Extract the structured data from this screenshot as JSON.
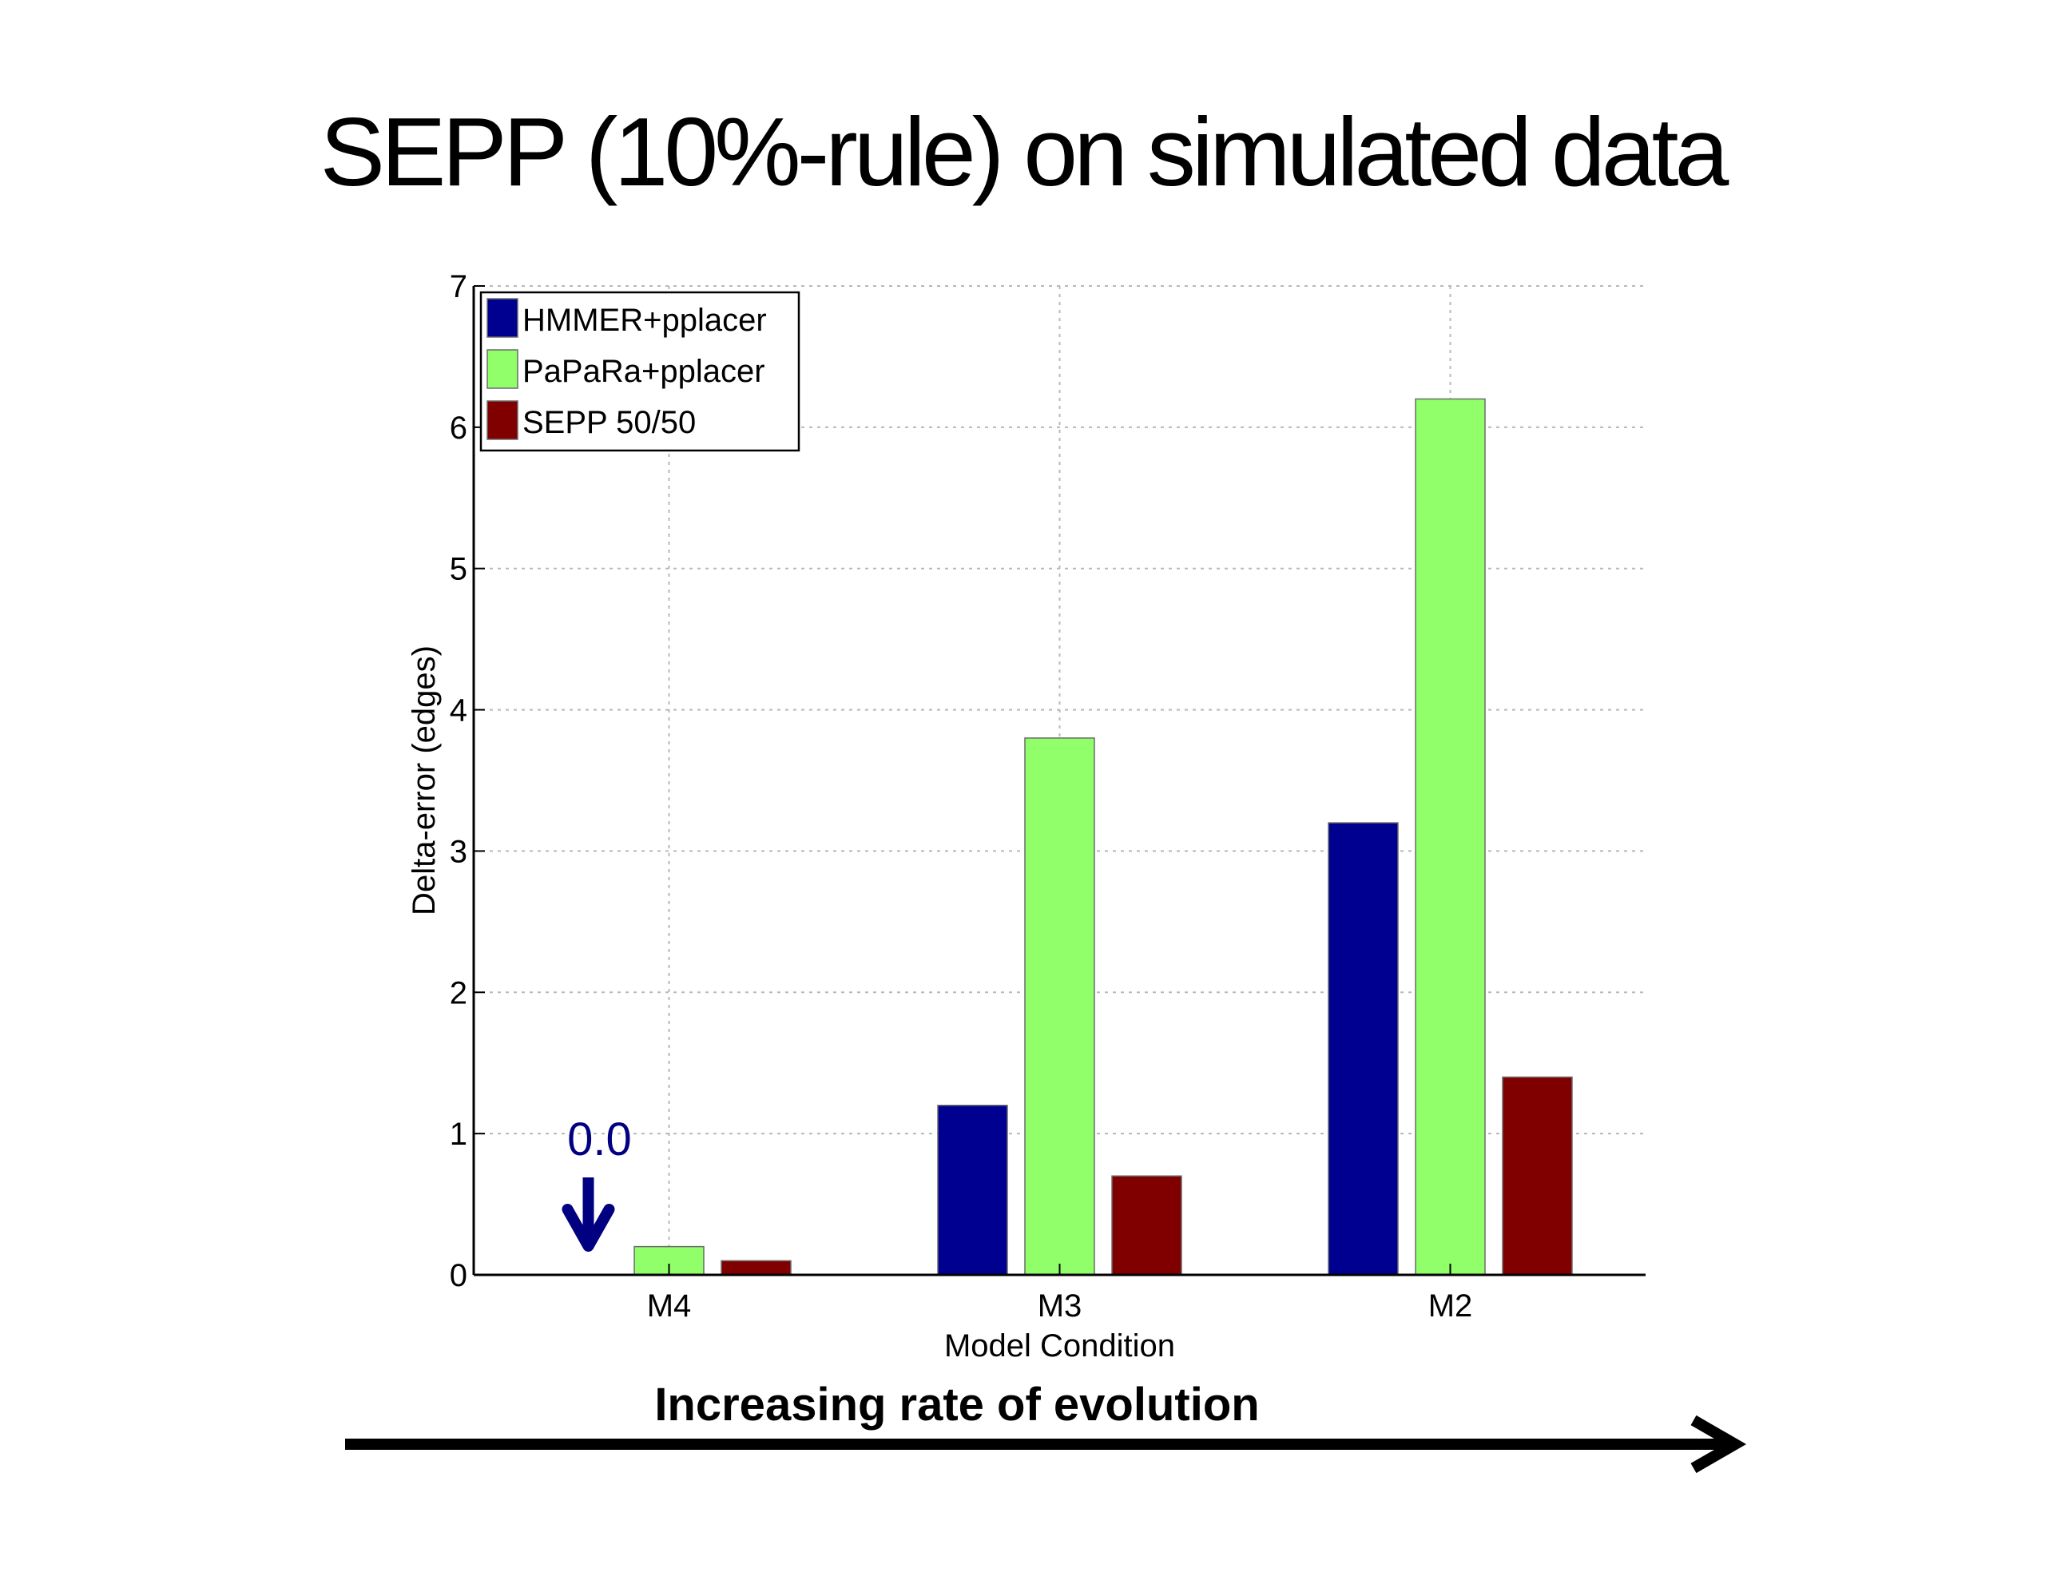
{
  "slide": {
    "title": "SEPP (10%-rule) on simulated data",
    "caption": "Increasing rate of evolution"
  },
  "chart_data": {
    "type": "bar",
    "title": "",
    "xlabel": "Model Condition",
    "ylabel": "Delta-error (edges)",
    "categories": [
      "M4",
      "M3",
      "M2"
    ],
    "series": [
      {
        "name": "HMMER+pplacer",
        "color": "#000090",
        "values": [
          0.0,
          1.2,
          3.2
        ]
      },
      {
        "name": "PaPaRa+pplacer",
        "color": "#90ff6a",
        "values": [
          0.2,
          3.8,
          6.2
        ]
      },
      {
        "name": "SEPP 50/50",
        "color": "#800000",
        "values": [
          0.1,
          0.7,
          1.4
        ]
      }
    ],
    "ylim": [
      0,
      7
    ],
    "yticks": [
      0,
      1,
      2,
      3,
      4,
      5,
      6,
      7
    ],
    "grid": true,
    "legend": "top-left",
    "annotations": [
      {
        "text": "0.0",
        "category": "M4",
        "series": "HMMER+pplacer",
        "color": "#000080",
        "arrow": "down-arrow-icon"
      }
    ]
  }
}
